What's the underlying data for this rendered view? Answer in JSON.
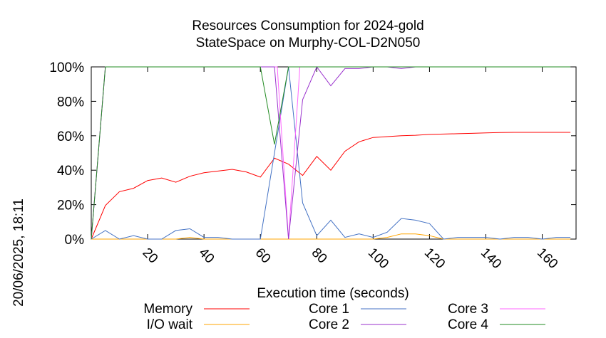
{
  "side_label": "20/06/2025, 18:11",
  "chart_data": {
    "type": "line",
    "title": "Resources Consumption for 2024-gold",
    "subtitle": "StateSpace on Murphy-COL-D2N050",
    "xlabel": "Execution time (seconds)",
    "ylabel": "",
    "xlim": [
      0,
      172
    ],
    "ylim": [
      0,
      100
    ],
    "x_ticks": [
      20,
      40,
      60,
      80,
      100,
      120,
      140,
      160
    ],
    "x_tick_labels": [
      "20",
      "40",
      "60",
      "80",
      "100",
      "120",
      "140",
      "160"
    ],
    "y_ticks": [
      0,
      20,
      40,
      60,
      80,
      100
    ],
    "y_tick_labels": [
      "0%",
      "20%",
      "40%",
      "60%",
      "80%",
      "100%"
    ],
    "grid": false,
    "legend_position": "bottom",
    "series": [
      {
        "name": "Memory",
        "color": "#ff0000",
        "points": [
          [
            0,
            0
          ],
          [
            5,
            19.5
          ],
          [
            10,
            27.5
          ],
          [
            15,
            29.5
          ],
          [
            20,
            34
          ],
          [
            25,
            35.5
          ],
          [
            30,
            33
          ],
          [
            35,
            36.5
          ],
          [
            40,
            38.5
          ],
          [
            45,
            39.5
          ],
          [
            50,
            40.5
          ],
          [
            55,
            39
          ],
          [
            60,
            36
          ],
          [
            65,
            47
          ],
          [
            70,
            43.5
          ],
          [
            75,
            37
          ],
          [
            80,
            48
          ],
          [
            85,
            40
          ],
          [
            90,
            51
          ],
          [
            95,
            56.5
          ],
          [
            100,
            59
          ],
          [
            105,
            59.5
          ],
          [
            110,
            60
          ],
          [
            115,
            60.3
          ],
          [
            120,
            60.8
          ],
          [
            125,
            61
          ],
          [
            130,
            61.2
          ],
          [
            135,
            61.4
          ],
          [
            140,
            61.7
          ],
          [
            145,
            61.9
          ],
          [
            150,
            62
          ],
          [
            155,
            62
          ],
          [
            160,
            62
          ],
          [
            165,
            62
          ],
          [
            170,
            62
          ]
        ]
      },
      {
        "name": "I/O wait",
        "color": "#ffa500",
        "points": [
          [
            0,
            0
          ],
          [
            5,
            0
          ],
          [
            10,
            0
          ],
          [
            15,
            0
          ],
          [
            20,
            0
          ],
          [
            25,
            0
          ],
          [
            30,
            0
          ],
          [
            35,
            1
          ],
          [
            40,
            0
          ],
          [
            45,
            0
          ],
          [
            50,
            0
          ],
          [
            55,
            0
          ],
          [
            60,
            0
          ],
          [
            65,
            0
          ],
          [
            70,
            0
          ],
          [
            75,
            0
          ],
          [
            80,
            0
          ],
          [
            85,
            0
          ],
          [
            90,
            0
          ],
          [
            95,
            0
          ],
          [
            100,
            0
          ],
          [
            105,
            1
          ],
          [
            110,
            3
          ],
          [
            115,
            3
          ],
          [
            120,
            2
          ],
          [
            125,
            0
          ],
          [
            130,
            0
          ],
          [
            135,
            0
          ],
          [
            140,
            0
          ],
          [
            145,
            0
          ],
          [
            150,
            0
          ],
          [
            155,
            0
          ],
          [
            160,
            0
          ],
          [
            165,
            0
          ],
          [
            170,
            0
          ]
        ]
      },
      {
        "name": "Core 1",
        "color": "#4472c4",
        "points": [
          [
            0,
            0
          ],
          [
            5,
            5
          ],
          [
            10,
            0
          ],
          [
            15,
            2
          ],
          [
            20,
            0
          ],
          [
            25,
            0
          ],
          [
            30,
            5
          ],
          [
            35,
            6
          ],
          [
            40,
            1
          ],
          [
            45,
            1
          ],
          [
            50,
            0
          ],
          [
            55,
            0
          ],
          [
            60,
            0
          ],
          [
            65,
            50
          ],
          [
            70,
            100
          ],
          [
            75,
            21
          ],
          [
            80,
            2
          ],
          [
            85,
            11
          ],
          [
            90,
            1
          ],
          [
            95,
            3
          ],
          [
            100,
            1
          ],
          [
            105,
            4
          ],
          [
            110,
            12
          ],
          [
            115,
            11
          ],
          [
            120,
            9
          ],
          [
            125,
            0
          ],
          [
            130,
            1
          ],
          [
            135,
            1
          ],
          [
            140,
            1
          ],
          [
            145,
            0
          ],
          [
            150,
            1
          ],
          [
            155,
            1
          ],
          [
            160,
            0
          ],
          [
            165,
            1
          ],
          [
            170,
            1
          ]
        ]
      },
      {
        "name": "Core 2",
        "color": "#9a32cd",
        "points": [
          [
            0,
            0
          ],
          [
            5,
            100
          ],
          [
            10,
            100
          ],
          [
            15,
            100
          ],
          [
            20,
            100
          ],
          [
            25,
            100
          ],
          [
            30,
            100
          ],
          [
            35,
            100
          ],
          [
            40,
            100
          ],
          [
            45,
            100
          ],
          [
            50,
            100
          ],
          [
            55,
            100
          ],
          [
            60,
            100
          ],
          [
            65,
            100
          ],
          [
            70,
            0
          ],
          [
            75,
            81
          ],
          [
            80,
            100
          ],
          [
            85,
            89
          ],
          [
            90,
            99
          ],
          [
            95,
            99
          ],
          [
            100,
            100
          ],
          [
            105,
            100
          ],
          [
            110,
            99
          ],
          [
            115,
            100
          ],
          [
            120,
            100
          ],
          [
            125,
            100
          ],
          [
            130,
            100
          ],
          [
            135,
            100
          ],
          [
            140,
            100
          ],
          [
            145,
            100
          ],
          [
            150,
            100
          ],
          [
            155,
            100
          ],
          [
            160,
            100
          ],
          [
            165,
            100
          ],
          [
            170,
            100
          ]
        ]
      },
      {
        "name": "Core 3",
        "color": "#ff66ff",
        "points": [
          [
            0,
            0
          ],
          [
            5,
            100
          ],
          [
            10,
            100
          ],
          [
            15,
            100
          ],
          [
            20,
            100
          ],
          [
            25,
            100
          ],
          [
            30,
            100
          ],
          [
            35,
            100
          ],
          [
            40,
            100
          ],
          [
            45,
            100
          ],
          [
            50,
            100
          ],
          [
            55,
            100
          ],
          [
            60,
            100
          ],
          [
            65,
            100
          ],
          [
            66,
            100
          ],
          [
            70,
            0
          ],
          [
            74,
            100
          ],
          [
            80,
            100
          ],
          [
            85,
            100
          ],
          [
            90,
            100
          ],
          [
            95,
            100
          ],
          [
            100,
            100
          ],
          [
            105,
            100
          ],
          [
            110,
            100
          ],
          [
            115,
            100
          ],
          [
            120,
            100
          ],
          [
            125,
            100
          ],
          [
            130,
            100
          ],
          [
            135,
            100
          ],
          [
            140,
            100
          ],
          [
            145,
            100
          ],
          [
            150,
            100
          ],
          [
            155,
            100
          ],
          [
            160,
            100
          ],
          [
            165,
            100
          ],
          [
            170,
            100
          ]
        ]
      },
      {
        "name": "Core 4",
        "color": "#228b22",
        "points": [
          [
            0,
            0
          ],
          [
            5,
            100
          ],
          [
            10,
            100
          ],
          [
            15,
            100
          ],
          [
            20,
            100
          ],
          [
            25,
            100
          ],
          [
            30,
            100
          ],
          [
            35,
            100
          ],
          [
            40,
            100
          ],
          [
            45,
            100
          ],
          [
            50,
            100
          ],
          [
            55,
            100
          ],
          [
            60,
            100
          ],
          [
            65,
            55
          ],
          [
            70,
            100
          ],
          [
            75,
            100
          ],
          [
            80,
            100
          ],
          [
            85,
            100
          ],
          [
            90,
            100
          ],
          [
            95,
            100
          ],
          [
            100,
            100
          ],
          [
            105,
            100
          ],
          [
            110,
            100
          ],
          [
            115,
            100
          ],
          [
            120,
            100
          ],
          [
            125,
            100
          ],
          [
            130,
            100
          ],
          [
            135,
            100
          ],
          [
            140,
            100
          ],
          [
            145,
            100
          ],
          [
            150,
            100
          ],
          [
            155,
            100
          ],
          [
            160,
            100
          ],
          [
            165,
            100
          ],
          [
            170,
            100
          ]
        ]
      }
    ]
  }
}
